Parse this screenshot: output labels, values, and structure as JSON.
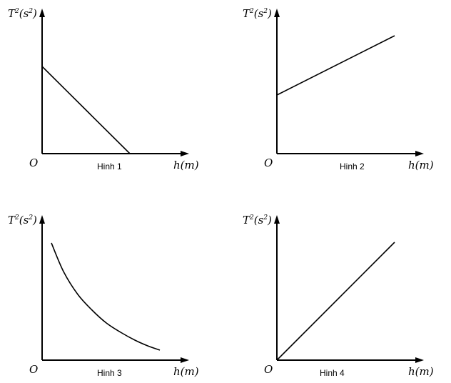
{
  "chart_data": [
    {
      "type": "line",
      "caption": "Hinh 1",
      "ylabel": {
        "base": "T",
        "exp": "2",
        "unit_base": "(s",
        "unit_exp": "2",
        "unit_close": ")"
      },
      "xlabel": "h(m)",
      "origin_label": "O",
      "ticks": "none",
      "xlim": [
        0,
        10.3
      ],
      "ylim": [
        0,
        10.15
      ],
      "series": [
        {
          "points": [
            [
              0,
              6.1
            ],
            [
              6.15,
              0
            ]
          ]
        }
      ]
    },
    {
      "type": "line",
      "caption": "Hinh 2",
      "ylabel": {
        "base": "T",
        "exp": "2",
        "unit_base": "(s",
        "unit_exp": "2",
        "unit_close": ")"
      },
      "xlabel": "h(m)",
      "origin_label": "O",
      "ticks": "none",
      "xlim": [
        0,
        10.3
      ],
      "ylim": [
        0,
        10.15
      ],
      "series": [
        {
          "points": [
            [
              0,
              4.1
            ],
            [
              8.25,
              8.25
            ]
          ]
        }
      ]
    },
    {
      "type": "line",
      "caption": "Hinh 3",
      "ylabel": {
        "base": "T",
        "exp": "2",
        "unit_base": "(s",
        "unit_exp": "2",
        "unit_close": ")"
      },
      "xlabel": "h(m)",
      "origin_label": "O",
      "ticks": "none",
      "xlim": [
        0,
        10.3
      ],
      "ylim": [
        0,
        10.15
      ],
      "series": [
        {
          "curve": "decreasing-convex",
          "points": [
            [
              0.65,
              8.2
            ],
            [
              1.5,
              6.2
            ],
            [
              2.5,
              4.6
            ],
            [
              3.5,
              3.5
            ],
            [
              4.5,
              2.6
            ],
            [
              5.5,
              1.95
            ],
            [
              6.5,
              1.4
            ],
            [
              7.4,
              1.0
            ],
            [
              8.25,
              0.7
            ]
          ]
        }
      ]
    },
    {
      "type": "line",
      "caption": "Hinh 4",
      "ylabel": {
        "base": "T",
        "exp": "2",
        "unit_base": "(s",
        "unit_exp": "2",
        "unit_close": ")"
      },
      "xlabel": "h(m)",
      "origin_label": "O",
      "ticks": "none",
      "xlim": [
        0,
        10.3
      ],
      "ylim": [
        0,
        10.15
      ],
      "series": [
        {
          "points": [
            [
              0,
              0
            ],
            [
              8.25,
              8.25
            ]
          ]
        }
      ]
    }
  ]
}
